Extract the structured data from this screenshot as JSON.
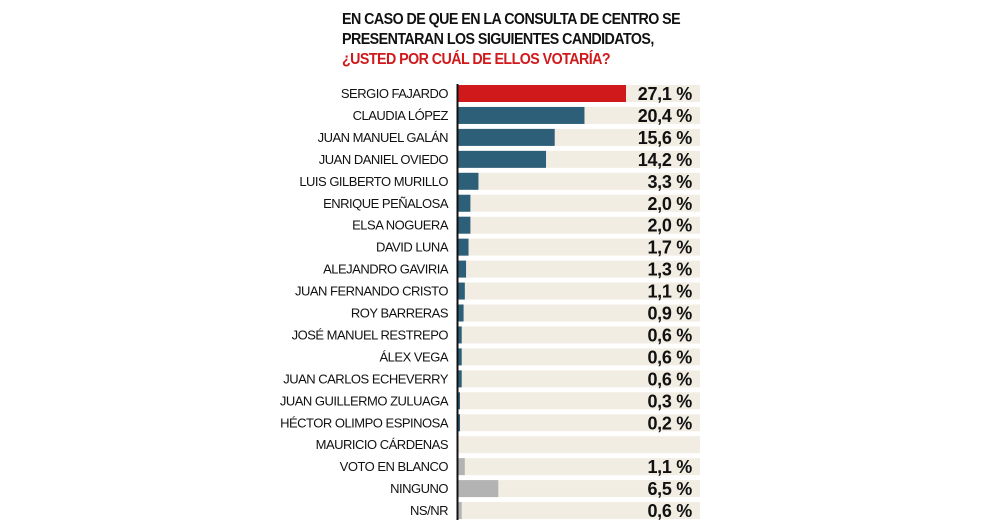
{
  "chart_data": {
    "type": "bar",
    "orientation": "horizontal",
    "title": {
      "line1": "EN CASO DE QUE EN LA CONSULTA DE CENTRO SE",
      "line2": "PRESENTARAN LOS SIGUIENTES CANDIDATOS,",
      "line3": "¿USTED POR CUÁL DE ELLOS VOTARÍA?"
    },
    "xlim": [
      0,
      39
    ],
    "unit": "%",
    "categories": [
      "SERGIO FAJARDO",
      "CLAUDIA LÓPEZ",
      "JUAN MANUEL GALÁN",
      "JUAN DANIEL OVIEDO",
      "LUIS GILBERTO MURILLO",
      "ENRIQUE PEÑALOSA",
      "ELSA NOGUERA",
      "DAVID LUNA",
      "ALEJANDRO GAVIRIA",
      "JUAN FERNANDO CRISTO",
      "ROY BARRERAS",
      "JOSÉ MANUEL RESTREPO",
      "ÁLEX VEGA",
      "JUAN CARLOS ECHEVERRY",
      "JUAN GUILLERMO ZULUAGA",
      "HÉCTOR OLIMPO ESPINOSA",
      "MAURICIO CÁRDENAS",
      "VOTO EN BLANCO",
      "NINGUNO",
      "NS/NR"
    ],
    "values": [
      27.1,
      20.4,
      15.6,
      14.2,
      3.3,
      2.0,
      2.0,
      1.7,
      1.3,
      1.1,
      0.9,
      0.6,
      0.6,
      0.6,
      0.3,
      0.2,
      null,
      1.1,
      6.5,
      0.6
    ],
    "labels": [
      "27,1 %",
      "20,4 %",
      "15,6 %",
      "14,2 %",
      "3,3 %",
      "2,0 %",
      "2,0 %",
      "1,7 %",
      "1,3 %",
      "1,1 %",
      "0,9 %",
      "0,6 %",
      "0,6 %",
      "0,6 %",
      "0,3 %",
      "0,2 %",
      "",
      "1,1 %",
      "6,5 %",
      "0,6 %"
    ],
    "groups": [
      "leader",
      "candidate",
      "candidate",
      "candidate",
      "candidate",
      "candidate",
      "candidate",
      "candidate",
      "candidate",
      "candidate",
      "candidate",
      "candidate",
      "candidate",
      "candidate",
      "candidate",
      "candidate",
      "candidate",
      "other",
      "other",
      "other"
    ],
    "colors": {
      "leader": "#d0191b",
      "candidate": "#2d5f78",
      "other": "#b3b3b3",
      "track": "#f1ede3",
      "leader_text": "#d0191b",
      "text": "#111111"
    }
  }
}
